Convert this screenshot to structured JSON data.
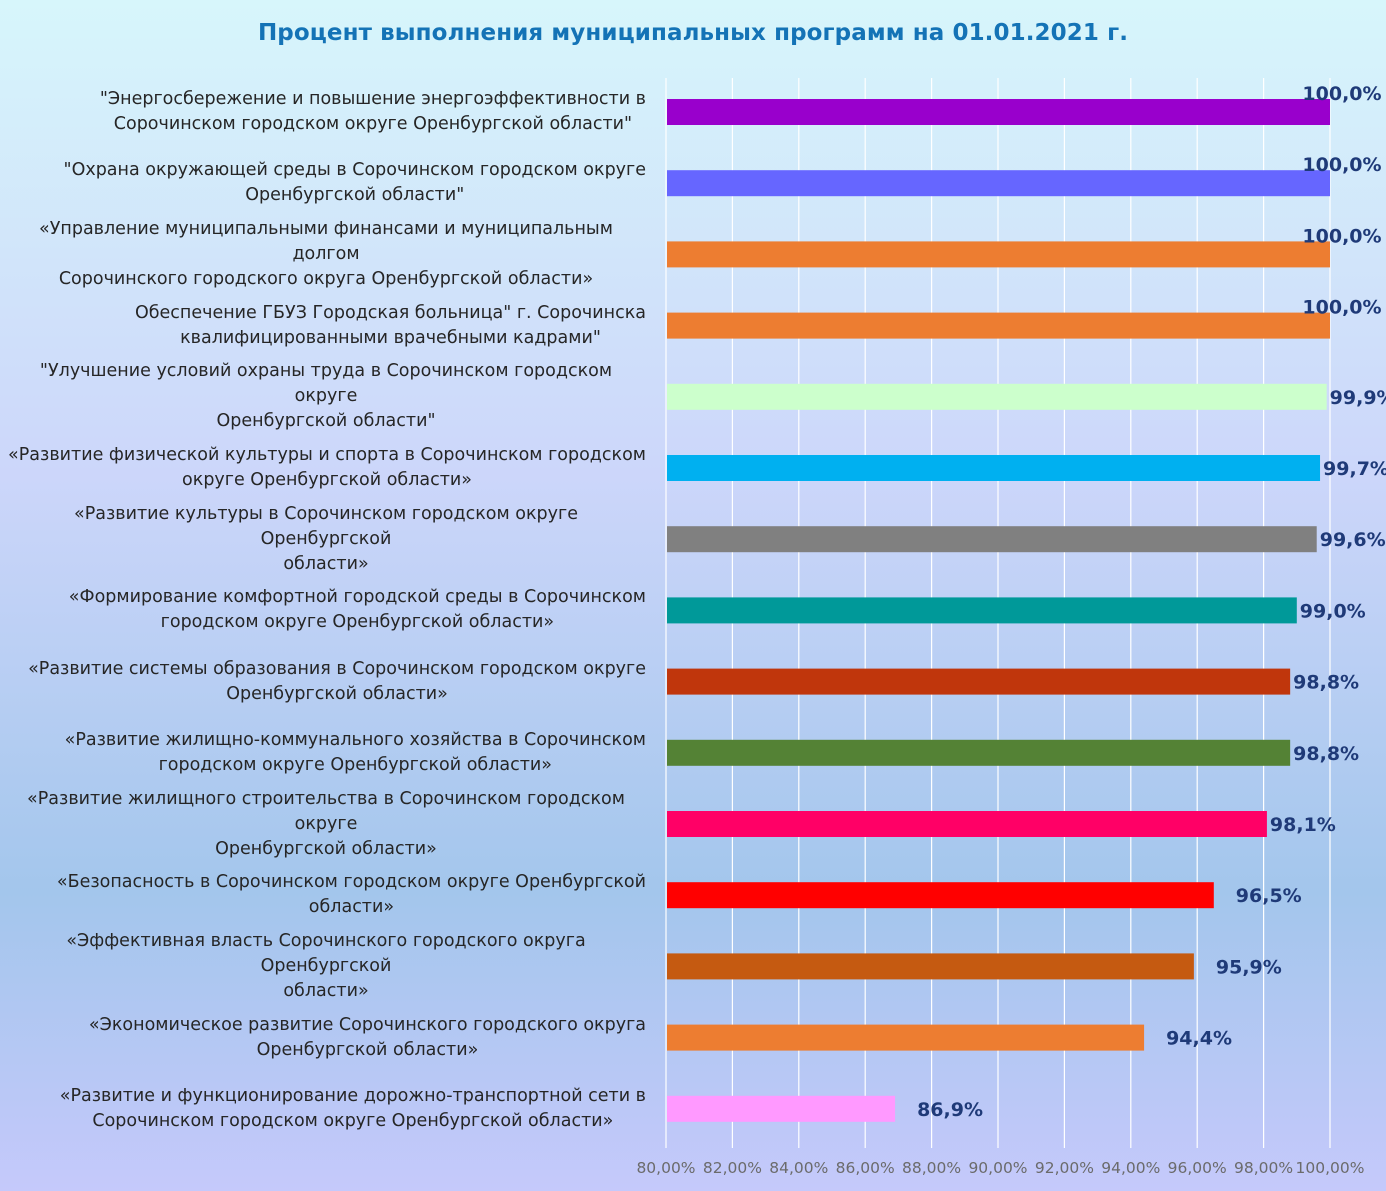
{
  "title": "Процент выполнения муниципальных программ на 01.01.2021 г.",
  "chart_data": {
    "type": "bar",
    "orientation": "horizontal",
    "title": "Процент выполнения муниципальных программ на 01.01.2021 г.",
    "xlim": [
      80,
      100
    ],
    "xticks": [
      "80,00%",
      "82,00%",
      "84,00%",
      "86,00%",
      "88,00%",
      "90,00%",
      "92,00%",
      "94,00%",
      "96,00%",
      "98,00%",
      "100,00%"
    ],
    "grid": "vertical",
    "legend": "none",
    "categories": [
      "\"Энергосбережение и повышение энергоэффективности в Сорочинском городском округе Оренбургской области\"",
      "\"Охрана окружающей среды в Сорочинском городском округе Оренбургской области\"",
      "«Управление муниципальными финансами и муниципальным долгом Сорочинского городского округа Оренбургской области»",
      "Обеспечение ГБУЗ Городская больница\" г. Сорочинска квалифицированными врачебными кадрами\"",
      "\"Улучшение условий охраны труда в Сорочинском городском округе Оренбургской области\"",
      "«Развитие физической культуры и спорта в Сорочинском городском округе Оренбургской области»",
      "«Развитие культуры в Сорочинском городском округе Оренбургской области»",
      "«Формирование комфортной городской среды в Сорочинском городском округе Оренбургской области»",
      "«Развитие системы образования в Сорочинском городском округе Оренбургской области»",
      "«Развитие жилищно-коммунального хозяйства в Сорочинском городском округе Оренбургской области»",
      "«Развитие жилищного строительства в Сорочинском городском округе Оренбургской области»",
      "«Безопасность в Сорочинском городском округе Оренбургской области»",
      "«Эффективная власть Сорочинского городского округа Оренбургской области»",
      "«Экономическое развитие Сорочинского городского округа Оренбургской области»",
      "«Развитие и функционирование дорожно-транспортной сети в Сорочинском городском округе Оренбургской области»"
    ],
    "label_lines": [
      [
        "\"Энергосбережение и повышение энергоэффективности в",
        "Сорочинском городском округе Оренбургской области\""
      ],
      [
        "\"Охрана окружающей среды в Сорочинском городском округе",
        "Оренбургской области\""
      ],
      [
        "«Управление муниципальными финансами и муниципальным долгом",
        "Сорочинского городского округа Оренбургской области»"
      ],
      [
        "Обеспечение ГБУЗ Городская больница\" г. Сорочинска",
        "квалифицированными врачебными кадрами\""
      ],
      [
        "\"Улучшение условий охраны труда в Сорочинском городском округе",
        "Оренбургской области\""
      ],
      [
        "«Развитие физической культуры и спорта в Сорочинском городском",
        "округе Оренбургской области»"
      ],
      [
        "«Развитие культуры в Сорочинском городском округе Оренбургской",
        "области»"
      ],
      [
        "«Формирование комфортной городской среды в Сорочинском",
        "городском округе Оренбургской области»"
      ],
      [
        "«Развитие системы образования в Сорочинском городском округе",
        "Оренбургской области»"
      ],
      [
        "«Развитие жилищно-коммунального хозяйства в Сорочинском",
        "городском округе Оренбургской области»"
      ],
      [
        "«Развитие жилищного строительства в Сорочинском городском округе",
        "Оренбургской области»"
      ],
      [
        "«Безопасность в Сорочинском городском округе Оренбургской",
        "области»"
      ],
      [
        "«Эффективная власть Сорочинского городского округа Оренбургской",
        "области»"
      ],
      [
        "«Экономическое развитие Сорочинского городского округа",
        "Оренбургской области»"
      ],
      [
        "«Развитие и функционирование дорожно-транспортной сети в",
        "Сорочинском городском округе Оренбургской области»"
      ]
    ],
    "values": [
      100.0,
      100.0,
      100.0,
      100.0,
      99.9,
      99.7,
      99.6,
      99.0,
      98.8,
      98.8,
      98.1,
      96.5,
      95.9,
      94.4,
      86.9
    ],
    "data_labels": [
      "100,0%",
      "100,0%",
      "100,0%",
      "100,0%",
      "99,9%",
      "99,7%",
      "99,6%",
      "99,0%",
      "98,8%",
      "98,8%",
      "98,1%",
      "96,5%",
      "95,9%",
      "94,4%",
      "86,9%"
    ],
    "colors": [
      "#9900cc",
      "#6666ff",
      "#ed7d31",
      "#ed7d31",
      "#ccffcc",
      "#00b0f0",
      "#808080",
      "#009999",
      "#c0360c",
      "#548235",
      "#ff0066",
      "#ff0000",
      "#c55a11",
      "#ed7d31",
      "#ff99ff"
    ]
  }
}
